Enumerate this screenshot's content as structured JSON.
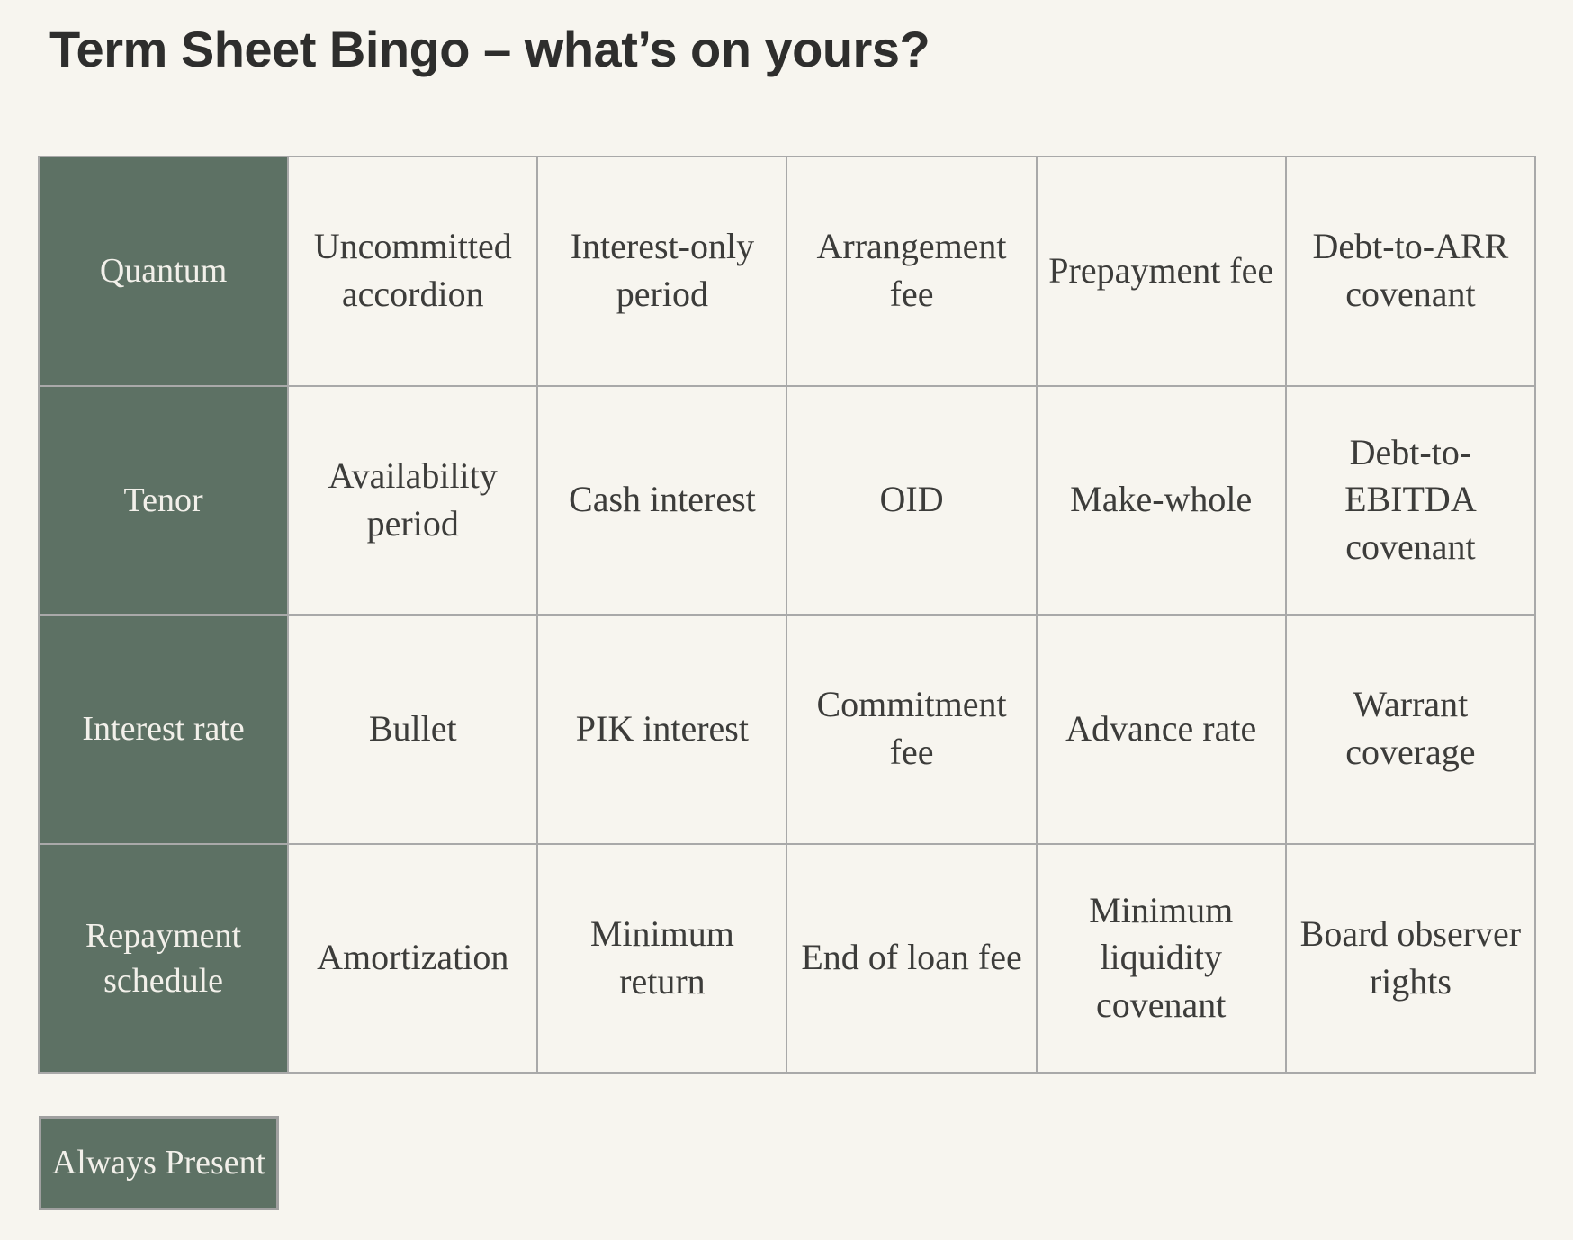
{
  "slide": {
    "title": "Term Sheet Bingo – what’s on yours?"
  },
  "table": {
    "rows": [
      {
        "header": "Quantum",
        "cells": [
          "Uncommitted accordion",
          "Interest-only period",
          "Arrangement fee",
          "Prepayment fee",
          "Debt-to-ARR covenant"
        ]
      },
      {
        "header": "Tenor",
        "cells": [
          "Availability period",
          "Cash interest",
          "OID",
          "Make-whole",
          "Debt-to-EBITDA covenant"
        ]
      },
      {
        "header": "Interest rate",
        "cells": [
          "Bullet",
          "PIK interest",
          "Commitment fee",
          "Advance rate",
          "Warrant coverage"
        ]
      },
      {
        "header": "Repayment schedule",
        "cells": [
          "Amortization",
          "Minimum return",
          "End of loan fee",
          "Minimum liquidity covenant",
          "Board observer rights"
        ]
      }
    ]
  },
  "legend": {
    "label": "Always Present"
  },
  "colors": {
    "background": "#f7f5ef",
    "accent_green": "#5d7164",
    "border_gray": "#a9a9a9",
    "cell_text": "#3c3c3a",
    "header_text": "#f2f0ea"
  }
}
